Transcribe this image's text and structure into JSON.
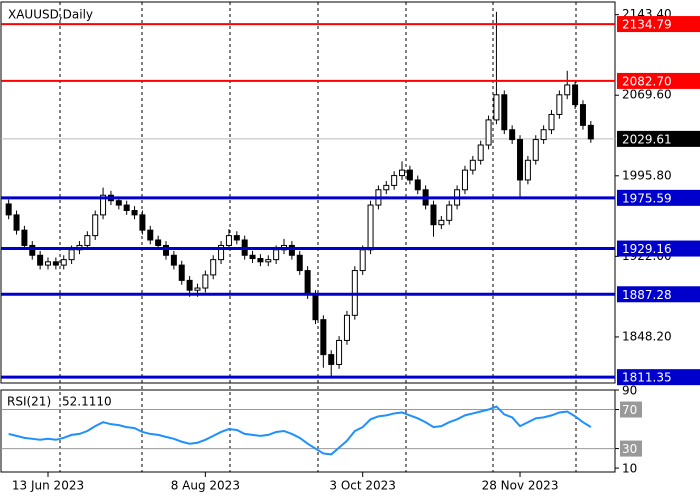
{
  "chart_data": [
    {
      "type": "candlestick",
      "title": "XAUUSD,Daily",
      "categories": [
        null,
        null,
        null,
        null,
        null,
        "13 Jun 2023",
        null,
        null,
        null,
        null,
        null,
        null,
        null,
        null,
        null,
        null,
        null,
        null,
        null,
        null,
        null,
        null,
        null,
        null,
        null,
        "8 Aug 2023",
        null,
        null,
        null,
        null,
        null,
        null,
        null,
        null,
        null,
        null,
        null,
        null,
        null,
        null,
        null,
        null,
        null,
        null,
        null,
        "3 Oct 2023",
        null,
        null,
        null,
        null,
        null,
        null,
        null,
        null,
        null,
        null,
        null,
        null,
        null,
        null,
        null,
        null,
        null,
        null,
        null,
        "28 Nov 2023",
        null,
        null,
        null,
        null,
        null,
        null,
        null,
        null,
        null
      ],
      "open": [
        1970,
        1960,
        1946,
        1932,
        1923,
        1914,
        1917,
        1914,
        1919,
        1928,
        1932,
        1941,
        1960,
        1978,
        1973,
        1969,
        1964,
        1960,
        1946,
        1937,
        1932,
        1923,
        1914,
        1900,
        1891,
        1893,
        1905,
        1919,
        1932,
        1941,
        1937,
        1923,
        1920,
        1917,
        1919,
        1928,
        1932,
        1923,
        1909,
        1887,
        1864,
        1832,
        1823,
        1845,
        1868,
        1909,
        1928,
        1969,
        1983,
        1987,
        1996,
        2001,
        1992,
        1983,
        1969,
        1951,
        1955,
        1969,
        1983,
        2001,
        2010,
        2024,
        2047,
        2070,
        2038,
        2029,
        1992,
        2010,
        2029,
        2038,
        2052,
        2070,
        2079,
        2061,
        2042
      ],
      "high": [
        1974,
        1964,
        1950,
        1936,
        1927,
        1921,
        1921,
        1923,
        1932,
        1936,
        1945,
        1964,
        1985,
        1982,
        1977,
        1973,
        1968,
        1964,
        1950,
        1941,
        1936,
        1927,
        1918,
        1904,
        1897,
        1909,
        1923,
        1936,
        1947,
        1945,
        1941,
        1927,
        1924,
        1923,
        1932,
        1938,
        1936,
        1927,
        1913,
        1891,
        1868,
        1836,
        1849,
        1872,
        1913,
        1932,
        1973,
        1987,
        1991,
        2000,
        2009,
        2005,
        1996,
        1987,
        1973,
        1959,
        1973,
        1987,
        2005,
        2014,
        2028,
        2051,
        2146,
        2074,
        2042,
        2033,
        2014,
        2033,
        2042,
        2056,
        2074,
        2092,
        2083,
        2065,
        2046
      ],
      "low": [
        1956,
        1942,
        1928,
        1919,
        1910,
        1910,
        1910,
        1910,
        1915,
        1924,
        1928,
        1937,
        1956,
        1969,
        1965,
        1960,
        1956,
        1942,
        1933,
        1928,
        1919,
        1910,
        1896,
        1885,
        1885,
        1889,
        1901,
        1915,
        1928,
        1933,
        1919,
        1916,
        1913,
        1913,
        1915,
        1924,
        1919,
        1905,
        1883,
        1860,
        1820,
        1810,
        1819,
        1841,
        1864,
        1905,
        1924,
        1965,
        1979,
        1983,
        1992,
        1988,
        1979,
        1965,
        1940,
        1947,
        1951,
        1965,
        1979,
        1997,
        2006,
        2020,
        2043,
        2034,
        2025,
        1975,
        1988,
        2006,
        2025,
        2034,
        2048,
        2066,
        2057,
        2038,
        2026
      ],
      "close": [
        1960,
        1946,
        1932,
        1923,
        1914,
        1917,
        1914,
        1919,
        1928,
        1932,
        1941,
        1960,
        1978,
        1973,
        1969,
        1964,
        1960,
        1946,
        1937,
        1932,
        1923,
        1914,
        1900,
        1891,
        1893,
        1905,
        1919,
        1932,
        1941,
        1937,
        1923,
        1920,
        1917,
        1919,
        1928,
        1932,
        1923,
        1909,
        1887,
        1864,
        1832,
        1823,
        1845,
        1868,
        1909,
        1928,
        1969,
        1983,
        1987,
        1996,
        2001,
        1992,
        1983,
        1969,
        1951,
        1955,
        1969,
        1983,
        2001,
        2010,
        2024,
        2047,
        2070,
        2038,
        2029,
        1992,
        2010,
        2029,
        2038,
        2052,
        2070,
        2079,
        2061,
        2042,
        2029.61
      ],
      "ylim": [
        1806,
        2155
      ],
      "yticks": [
        {
          "value": 2143.4,
          "label": "2143.40"
        },
        {
          "value": 2069.6,
          "label": "2069.60"
        },
        {
          "value": 1995.8,
          "label": "1995.80"
        },
        {
          "value": 1922,
          "label": "1922.00"
        },
        {
          "value": 1848.2,
          "label": "1848.20"
        }
      ],
      "levels": [
        {
          "value": 2134.79,
          "label": "2134.79",
          "color": "#ff0000"
        },
        {
          "value": 2082.7,
          "label": "2082.70",
          "color": "#ff0000"
        },
        {
          "value": 1975.59,
          "label": "1975.59",
          "color": "#0000cd"
        },
        {
          "value": 1929.16,
          "label": "1929.16",
          "color": "#0000cd"
        },
        {
          "value": 1887.28,
          "label": "1887.28",
          "color": "#0000cd"
        },
        {
          "value": 1811.35,
          "label": "1811.35",
          "color": "#0000cd"
        }
      ],
      "current": {
        "value": 2029.61,
        "label": "2029.61"
      }
    },
    {
      "type": "line",
      "title": "RSI(21)",
      "color": "#1e90ff",
      "values": [
        45,
        43,
        41,
        40,
        39,
        40,
        39,
        41,
        44,
        45,
        48,
        53,
        57,
        55,
        54,
        52,
        51,
        47,
        45,
        44,
        42,
        40,
        37,
        35,
        36,
        39,
        43,
        47,
        50,
        49,
        45,
        44,
        43,
        44,
        47,
        48,
        45,
        41,
        35,
        30,
        25,
        24,
        31,
        38,
        48,
        52,
        60,
        63,
        64,
        66,
        67,
        64,
        61,
        57,
        52,
        53,
        57,
        60,
        64,
        66,
        68,
        70,
        73,
        65,
        62,
        53,
        57,
        61,
        62,
        64,
        67,
        68,
        63,
        57,
        52.111
      ],
      "current": {
        "value": 52.111,
        "label": "52.1110"
      },
      "ylim": [
        6,
        90
      ],
      "yticks": [
        10,
        30,
        70,
        90
      ],
      "levels": [
        30,
        70
      ]
    }
  ]
}
